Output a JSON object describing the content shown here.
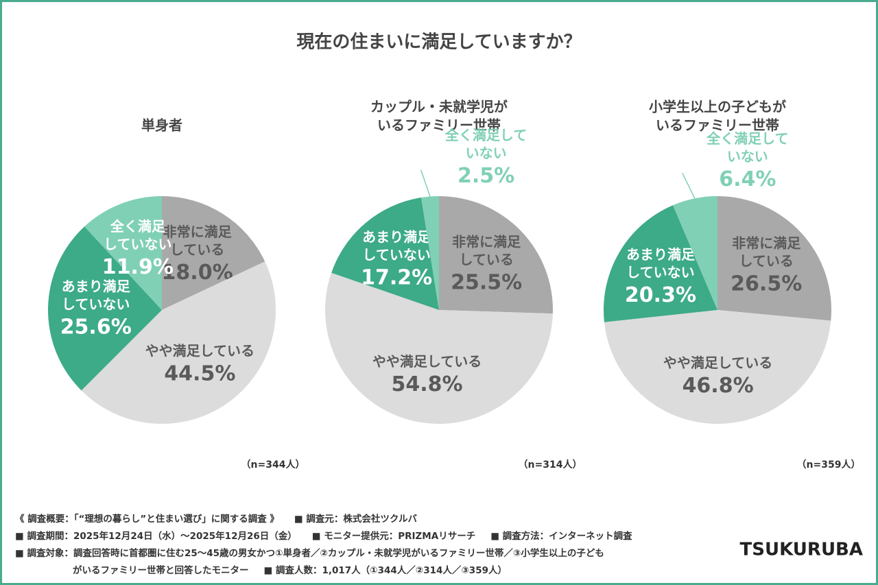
{
  "title": "現在の住まいに満足していますか？",
  "logo": "TSUKURUBA",
  "footer": [
    [
      "《 調査概要：「“理想の暮らし”と住まい選び」に関する調査 》",
      "■ 調査元：株式会社ツクルバ"
    ],
    [
      "■ 調査期間：2025年12月24日（水）〜2025年12月26日（金）",
      "■ モニター提供元：PRIZMAリサーチ",
      "■ 調査方法：インターネット調査"
    ],
    [
      "■ 調査対象：調査回答時に首都圏に住む25〜45歳の男女かつ①単身者／②カップル・未就学児がいるファミリー世帯／③小学生以上の子ども"
    ],
    [
      "がいるファミリー世帯と回答したモニター",
      "■ 調査人数：1,017人（①344人／②314人／③359人）"
    ]
  ],
  "chart_data": [
    {
      "type": "pie",
      "title": [
        "単身者"
      ],
      "note": "（n=344人）",
      "categories": [
        [
          "非常に満足",
          "している"
        ],
        [
          "やや満足している"
        ],
        [
          "あまり満足",
          "していない"
        ],
        [
          "全く満足",
          "していない"
        ]
      ],
      "values": [
        18.0,
        44.5,
        25.6,
        11.9
      ],
      "value_labels": [
        "18.0%",
        "44.5%",
        "25.6%",
        "11.9%"
      ],
      "colors": [
        "#a9a9a9",
        "#dcdcdc",
        "#3daa88",
        "#80d0b6"
      ]
    },
    {
      "type": "pie",
      "title": [
        "カップル・未就学児が",
        "いるファミリー世帯"
      ],
      "note": "（n=314人）",
      "categories": [
        [
          "非常に満足",
          "している"
        ],
        [
          "やや満足している"
        ],
        [
          "あまり満足",
          "していない"
        ],
        [
          "全く満足して",
          "いない"
        ]
      ],
      "values": [
        25.5,
        54.8,
        17.2,
        2.5
      ],
      "value_labels": [
        "25.5%",
        "54.8%",
        "17.2%",
        "2.5%"
      ],
      "colors": [
        "#a9a9a9",
        "#dcdcdc",
        "#3daa88",
        "#80d0b6"
      ]
    },
    {
      "type": "pie",
      "title": [
        "小学生以上の子どもが",
        "いるファミリー世帯"
      ],
      "note": "（n=359人）",
      "categories": [
        [
          "非常に満足",
          "している"
        ],
        [
          "やや満足している"
        ],
        [
          "あまり満足",
          "していない"
        ],
        [
          "全く満足して",
          "いない"
        ]
      ],
      "values": [
        26.5,
        46.8,
        20.3,
        6.4
      ],
      "value_labels": [
        "26.5%",
        "46.8%",
        "20.3%",
        "6.4%"
      ],
      "colors": [
        "#a9a9a9",
        "#dcdcdc",
        "#3daa88",
        "#80d0b6"
      ]
    }
  ]
}
